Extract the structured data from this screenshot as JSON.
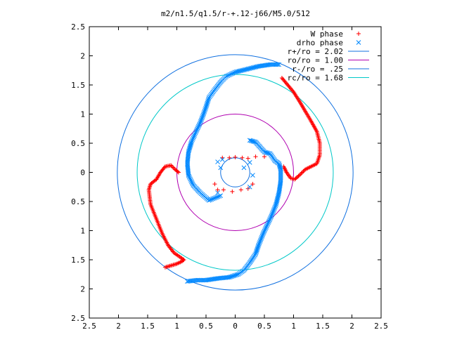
{
  "chart_data": {
    "type": "scatter",
    "title": "m2/n1.5/q1.5/r-+.12-j66/M5.0/512",
    "xlim": [
      -2.5,
      2.5
    ],
    "ylim": [
      -2.5,
      2.5
    ],
    "x_tick_values": [
      -2.5,
      -2,
      -1.5,
      -1,
      -0.5,
      0,
      0.5,
      1,
      1.5,
      2,
      2.5
    ],
    "x_tick_labels": [
      "2.5",
      "2",
      "1.5",
      "1",
      "0.5",
      "0",
      "0.5",
      "1",
      "1.5",
      "2",
      "2.5"
    ],
    "y_tick_values": [
      2.5,
      2,
      1.5,
      1,
      0.5,
      0,
      -0.5,
      -1,
      -1.5,
      -2,
      -2.5
    ],
    "y_tick_labels": [
      "2.5",
      "2",
      "1.5",
      "1",
      "0.5",
      "0",
      "0.5",
      "1",
      "1.5",
      "2",
      "2.5"
    ],
    "grid": false,
    "legend_position": "top-right",
    "series": [
      {
        "name": "W phase",
        "kind": "points",
        "marker": "plus",
        "color": "#ff0000",
        "segments": [
          [
            [
              0.8,
              1.62
            ],
            [
              0.9,
              1.5
            ],
            [
              1.0,
              1.38
            ],
            [
              1.1,
              1.22
            ],
            [
              1.2,
              1.05
            ],
            [
              1.3,
              0.88
            ],
            [
              1.4,
              0.7
            ],
            [
              1.45,
              0.5
            ],
            [
              1.45,
              0.3
            ],
            [
              1.4,
              0.15
            ],
            [
              1.3,
              0.1
            ],
            [
              1.2,
              0.05
            ],
            [
              1.1,
              -0.05
            ],
            [
              1.02,
              -0.12
            ],
            [
              0.95,
              -0.1
            ],
            [
              0.88,
              0.0
            ],
            [
              0.83,
              0.1
            ]
          ],
          [
            [
              -1.2,
              -1.63
            ],
            [
              -1.1,
              -1.6
            ],
            [
              -1.0,
              -1.57
            ],
            [
              -0.92,
              -1.53
            ],
            [
              -0.88,
              -1.5
            ],
            [
              -0.95,
              -1.45
            ],
            [
              -1.05,
              -1.38
            ],
            [
              -1.15,
              -1.25
            ],
            [
              -1.25,
              -1.05
            ],
            [
              -1.35,
              -0.8
            ],
            [
              -1.45,
              -0.55
            ],
            [
              -1.48,
              -0.3
            ],
            [
              -1.45,
              -0.2
            ],
            [
              -1.35,
              -0.12
            ],
            [
              -1.28,
              0.0
            ],
            [
              -1.2,
              0.1
            ],
            [
              -1.1,
              0.12
            ],
            [
              -1.03,
              0.05
            ],
            [
              -0.97,
              0.0
            ]
          ],
          [
            [
              -0.22,
              0.25
            ],
            [
              -0.1,
              0.25
            ],
            [
              0.0,
              0.26
            ],
            [
              0.12,
              0.25
            ],
            [
              0.22,
              0.24
            ],
            [
              0.35,
              0.27
            ],
            [
              0.5,
              0.27
            ],
            [
              -0.35,
              -0.2
            ],
            [
              -0.3,
              -0.3
            ],
            [
              -0.2,
              -0.3
            ],
            [
              -0.05,
              -0.33
            ],
            [
              0.1,
              -0.3
            ],
            [
              0.22,
              -0.28
            ],
            [
              0.3,
              -0.2
            ]
          ]
        ]
      },
      {
        "name": "drho phase",
        "kind": "points",
        "marker": "cross",
        "color": "#0088ff",
        "segments": [
          [
            [
              0.75,
              1.85
            ],
            [
              0.6,
              1.85
            ],
            [
              0.4,
              1.82
            ],
            [
              0.2,
              1.77
            ],
            [
              0.0,
              1.72
            ],
            [
              -0.15,
              1.65
            ],
            [
              -0.25,
              1.55
            ],
            [
              -0.35,
              1.42
            ],
            [
              -0.45,
              1.28
            ],
            [
              -0.5,
              1.12
            ],
            [
              -0.55,
              0.98
            ],
            [
              -0.6,
              0.85
            ],
            [
              -0.68,
              0.68
            ],
            [
              -0.75,
              0.52
            ],
            [
              -0.8,
              0.35
            ],
            [
              -0.82,
              0.15
            ],
            [
              -0.8,
              -0.05
            ],
            [
              -0.72,
              -0.22
            ],
            [
              -0.6,
              -0.35
            ],
            [
              -0.45,
              -0.48
            ],
            [
              -0.25,
              -0.4
            ]
          ],
          [
            [
              -0.82,
              -1.87
            ],
            [
              -0.65,
              -1.85
            ],
            [
              -0.5,
              -1.85
            ],
            [
              -0.3,
              -1.82
            ],
            [
              -0.1,
              -1.8
            ],
            [
              0.05,
              -1.75
            ],
            [
              0.15,
              -1.68
            ],
            [
              0.25,
              -1.55
            ],
            [
              0.35,
              -1.4
            ],
            [
              0.4,
              -1.25
            ],
            [
              0.48,
              -1.05
            ],
            [
              0.55,
              -0.9
            ],
            [
              0.62,
              -0.75
            ],
            [
              0.7,
              -0.55
            ],
            [
              0.75,
              -0.35
            ],
            [
              0.78,
              -0.15
            ],
            [
              0.78,
              0.05
            ],
            [
              0.75,
              0.15
            ],
            [
              0.68,
              0.2
            ],
            [
              0.6,
              0.32
            ],
            [
              0.5,
              0.35
            ],
            [
              0.35,
              0.52
            ],
            [
              0.25,
              0.55
            ]
          ],
          [
            [
              -0.3,
              0.18
            ],
            [
              -0.25,
              0.08
            ],
            [
              -0.22,
              0.22
            ],
            [
              0.25,
              0.17
            ],
            [
              0.15,
              0.08
            ],
            [
              -0.3,
              -0.35
            ],
            [
              0.25,
              -0.25
            ],
            [
              0.3,
              -0.05
            ]
          ]
        ]
      },
      {
        "name": "r+/ro = 2.02",
        "kind": "circle",
        "radius": 2.02,
        "color": "#1070e0"
      },
      {
        "name": "ro/ro = 1.00",
        "kind": "circle",
        "radius": 1.0,
        "color": "#b000b0"
      },
      {
        "name": "r-/ro = .25",
        "kind": "circle",
        "radius": 0.25,
        "color": "#1070e0"
      },
      {
        "name": "rc/ro = 1.68",
        "kind": "circle",
        "radius": 1.68,
        "color": "#00c8c8"
      }
    ]
  }
}
